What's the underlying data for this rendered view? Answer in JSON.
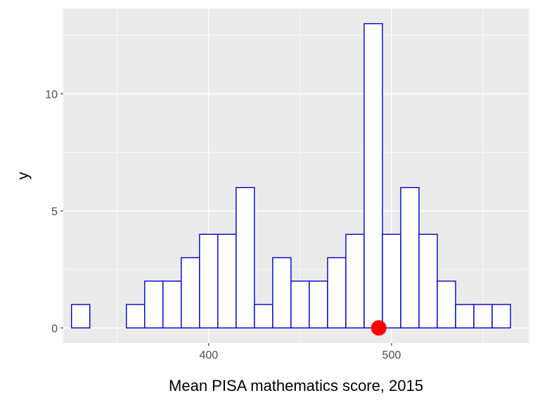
{
  "chart_data": {
    "type": "bar",
    "xlabel": "Mean PISA mathematics score, 2015",
    "ylabel": "y",
    "xlim": [
      320.5,
      575
    ],
    "ylim": [
      -0.65,
      13.65
    ],
    "x_ticks": [
      400,
      500
    ],
    "y_ticks": [
      0,
      5,
      10
    ],
    "grid": true,
    "bin_width": 10,
    "bins": [
      {
        "start": 325,
        "end": 335,
        "count": 1
      },
      {
        "start": 335,
        "end": 345,
        "count": 0
      },
      {
        "start": 345,
        "end": 355,
        "count": 0
      },
      {
        "start": 355,
        "end": 365,
        "count": 1
      },
      {
        "start": 365,
        "end": 375,
        "count": 2
      },
      {
        "start": 375,
        "end": 385,
        "count": 2
      },
      {
        "start": 385,
        "end": 395,
        "count": 3
      },
      {
        "start": 395,
        "end": 405,
        "count": 4
      },
      {
        "start": 405,
        "end": 415,
        "count": 4
      },
      {
        "start": 415,
        "end": 425,
        "count": 6
      },
      {
        "start": 425,
        "end": 435,
        "count": 1
      },
      {
        "start": 435,
        "end": 445,
        "count": 3
      },
      {
        "start": 445,
        "end": 455,
        "count": 2
      },
      {
        "start": 455,
        "end": 465,
        "count": 2
      },
      {
        "start": 465,
        "end": 475,
        "count": 3
      },
      {
        "start": 475,
        "end": 485,
        "count": 4
      },
      {
        "start": 485,
        "end": 495,
        "count": 13
      },
      {
        "start": 495,
        "end": 505,
        "count": 4
      },
      {
        "start": 505,
        "end": 515,
        "count": 6
      },
      {
        "start": 515,
        "end": 525,
        "count": 4
      },
      {
        "start": 525,
        "end": 535,
        "count": 2
      },
      {
        "start": 535,
        "end": 545,
        "count": 1
      },
      {
        "start": 545,
        "end": 555,
        "count": 1
      },
      {
        "start": 555,
        "end": 565,
        "count": 1
      }
    ],
    "marker": {
      "x": 493,
      "y": 0,
      "color": "#ff0000"
    },
    "colors": {
      "panel_background": "#ebebeb",
      "grid": "#ffffff",
      "bar_fill": "#ffffff",
      "bar_outline": "#0000cd",
      "tick_text": "#4d4d4d"
    }
  }
}
